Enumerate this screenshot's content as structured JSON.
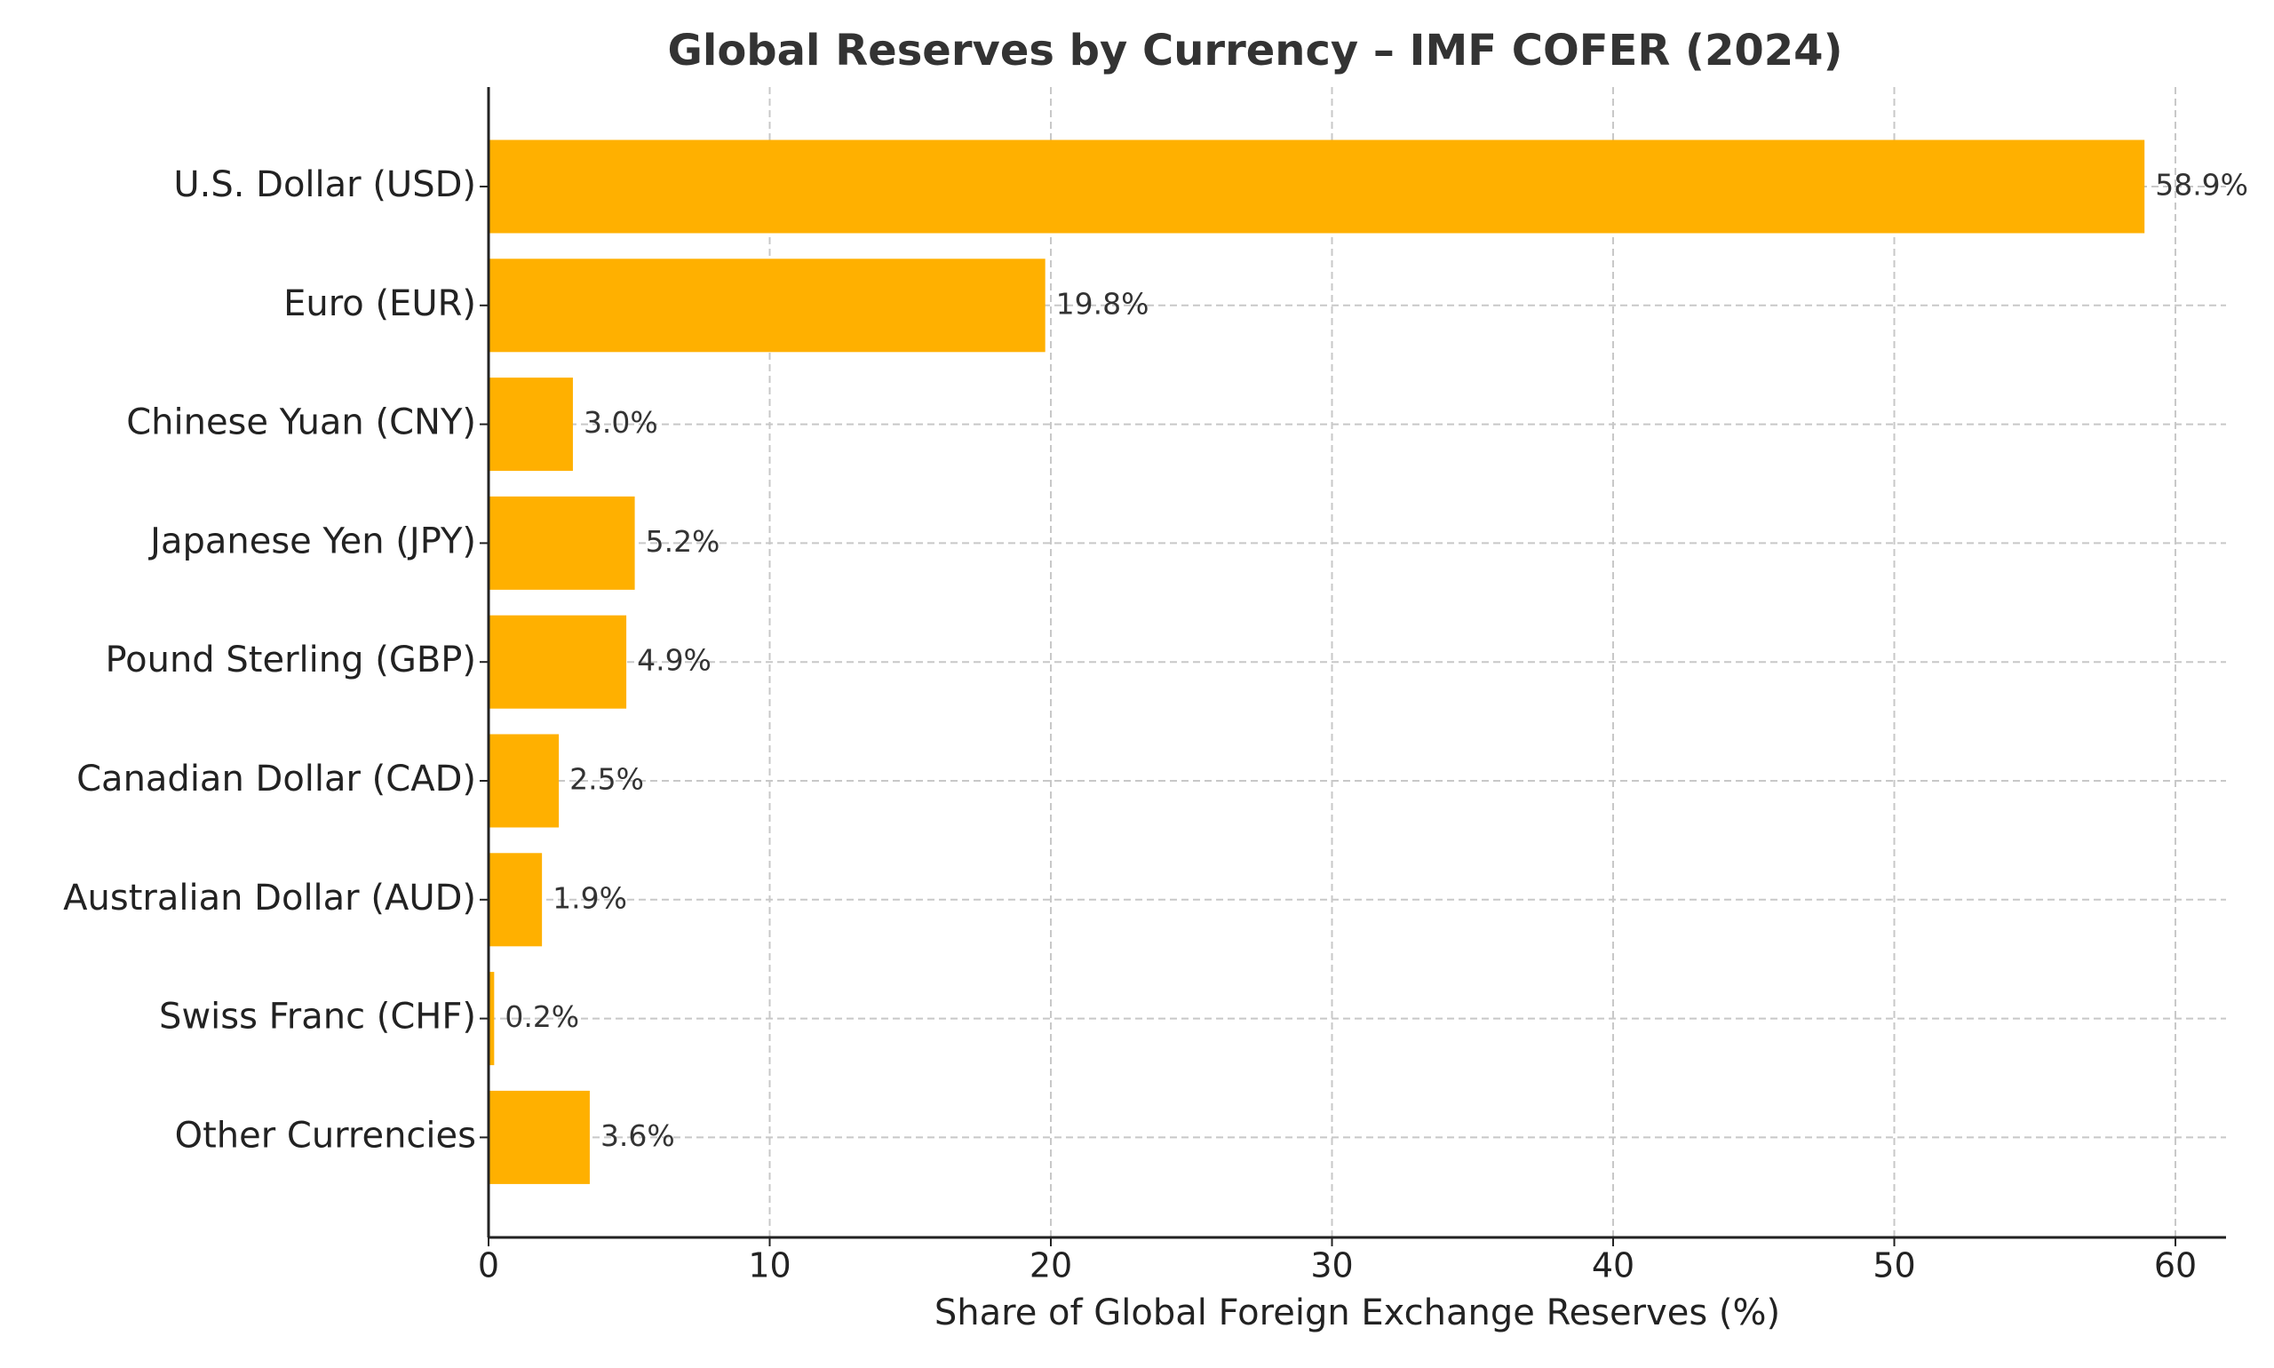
{
  "chart_data": {
    "type": "barh",
    "title": "Global Reserves by Currency – IMF COFER (2024)",
    "x_label": "Share of Global Foreign Exchange Reserves (%)",
    "categories": [
      "U.S. Dollar (USD)",
      "Euro (EUR)",
      "Chinese Yuan (CNY)",
      "Japanese Yen (JPY)",
      "Pound Sterling (GBP)",
      "Canadian Dollar (CAD)",
      "Australian Dollar (AUD)",
      "Swiss Franc (CHF)",
      "Other Currencies"
    ],
    "values": [
      58.9,
      19.8,
      3.0,
      5.2,
      4.9,
      2.5,
      1.9,
      0.2,
      3.6
    ],
    "value_labels": [
      "58.9%",
      "19.8%",
      "3.0%",
      "5.2%",
      "4.9%",
      "2.5%",
      "1.9%",
      "0.2%",
      "3.6%"
    ],
    "color": "#ffb000",
    "xlim": [
      0,
      61.8
    ],
    "xticks": [
      0,
      10,
      20,
      30,
      40,
      50,
      60
    ],
    "grid": true
  }
}
